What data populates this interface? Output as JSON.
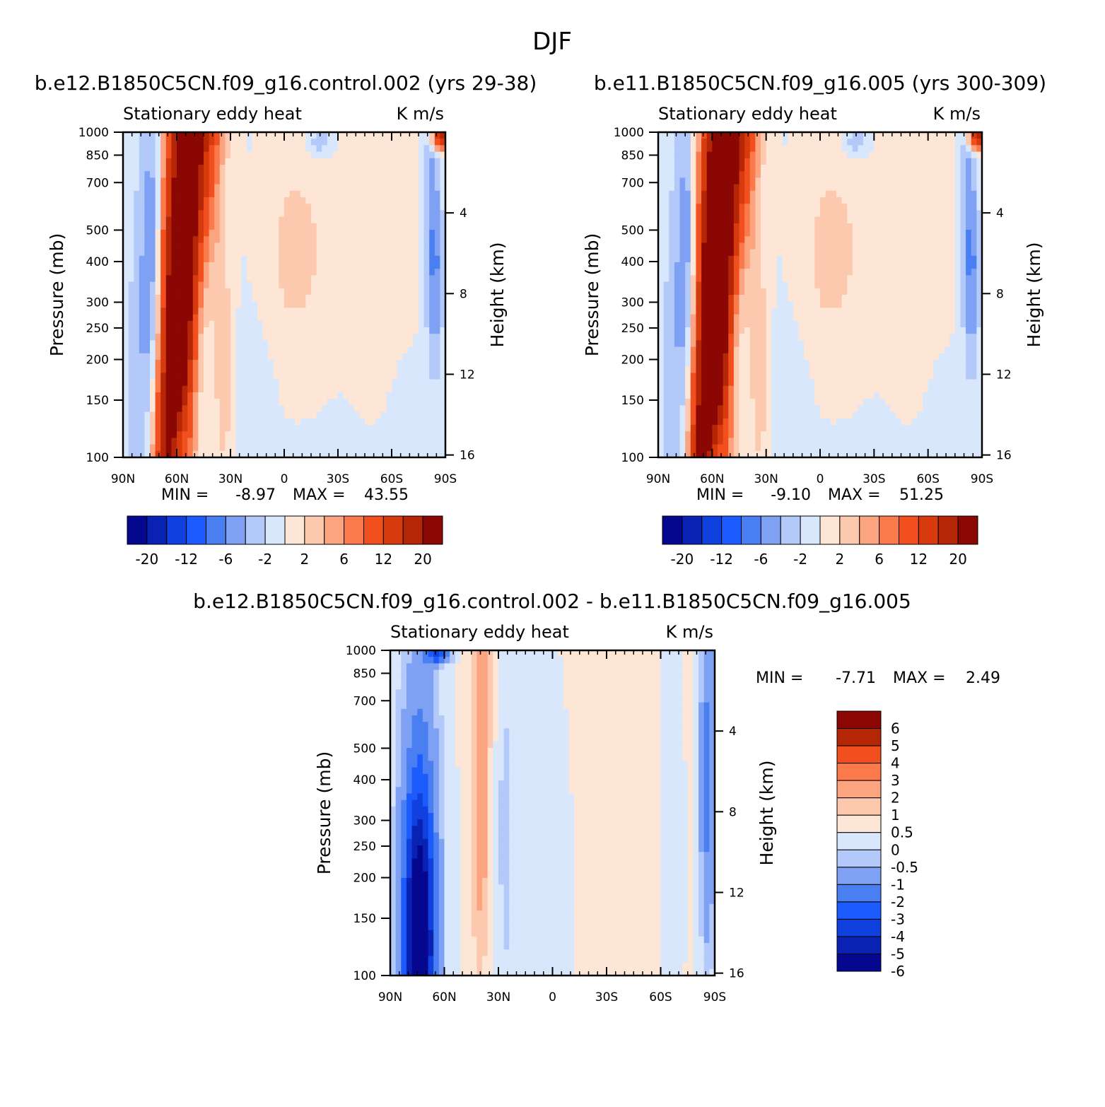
{
  "figure_title": "DJF",
  "colors": {
    "main_levels": [
      "#06078f",
      "#0a22b4",
      "#1040de",
      "#1c5cff",
      "#4a7ff2",
      "#7fa1f4",
      "#b2c9fa",
      "#d8e7fb",
      "#fde6d6",
      "#fcc8ae",
      "#fba47f",
      "#fa7a4b",
      "#f24f1f",
      "#d73a0c",
      "#b52607",
      "#8a0704"
    ],
    "diff_levels": [
      "#06078f",
      "#0a22b4",
      "#1040de",
      "#1c5cff",
      "#4a7ff2",
      "#7fa1f4",
      "#b2c9fa",
      "#d8e7fb",
      "#fde6d6",
      "#fcc8ae",
      "#fba47f",
      "#fa7a4b",
      "#f24f1f",
      "#b52607",
      "#8a0704"
    ]
  },
  "chart_data": [
    {
      "type": "heatmap",
      "title": "b.e12.B1850C5CN.f09_g16.control.002 (yrs 29-38)",
      "left_label": "Stationary eddy heat",
      "units": "K m/s",
      "ylabel": "Pressure (mb)",
      "ylabel_right": "Height (km)",
      "x_ticks": [
        "90N",
        "60N",
        "30N",
        "0",
        "30S",
        "60S",
        "90S"
      ],
      "y_ticks": [
        "100",
        "150",
        "200",
        "250",
        "300",
        "400",
        "500",
        "700",
        "850",
        "1000"
      ],
      "y_right_ticks": [
        "16",
        "12",
        "8",
        "4"
      ],
      "min_label": "MIN =",
      "min_value": "-8.97",
      "max_label": "MAX =",
      "max_value": "43.55",
      "colorbar_labels": [
        "-20",
        "-12",
        "-6",
        "-2",
        "2",
        "6",
        "12",
        "20"
      ],
      "xlim": [
        90,
        -90
      ],
      "ylim": [
        1000,
        100
      ],
      "features": [
        {
          "lat": 53,
          "p": 450,
          "value": 28
        },
        {
          "lat": 45,
          "p": 500,
          "value": 20
        },
        {
          "lat": 72,
          "p": 400,
          "value": -5
        },
        {
          "lat": 0,
          "p": 400,
          "value": 0.6
        },
        {
          "lat": -20,
          "p": 950,
          "value": -3
        },
        {
          "lat": -83,
          "p": 400,
          "value": -7
        },
        {
          "lat": -85,
          "p": 960,
          "value": 12
        }
      ]
    },
    {
      "type": "heatmap",
      "title": "b.e11.B1850C5CN.f09_g16.005 (yrs 300-309)",
      "left_label": "Stationary eddy heat",
      "units": "K m/s",
      "ylabel": "Pressure (mb)",
      "ylabel_right": "Height (km)",
      "x_ticks": [
        "90N",
        "60N",
        "30N",
        "0",
        "30S",
        "60S",
        "90S"
      ],
      "y_ticks": [
        "100",
        "150",
        "200",
        "250",
        "300",
        "400",
        "500",
        "700",
        "850",
        "1000"
      ],
      "y_right_ticks": [
        "16",
        "12",
        "8",
        "4"
      ],
      "min_label": "MIN =",
      "min_value": "-9.10",
      "max_label": "MAX =",
      "max_value": "51.25",
      "colorbar_labels": [
        "-20",
        "-12",
        "-6",
        "-2",
        "2",
        "6",
        "12",
        "20"
      ],
      "xlim": [
        90,
        -90
      ],
      "ylim": [
        1000,
        100
      ],
      "features": [
        {
          "lat": 53,
          "p": 450,
          "value": 30
        },
        {
          "lat": 58,
          "p": 120,
          "value": 15
        },
        {
          "lat": 72,
          "p": 400,
          "value": -5
        },
        {
          "lat": 0,
          "p": 400,
          "value": 0.6
        },
        {
          "lat": -20,
          "p": 950,
          "value": -3
        },
        {
          "lat": -83,
          "p": 400,
          "value": -6
        },
        {
          "lat": -85,
          "p": 960,
          "value": 12
        }
      ]
    },
    {
      "type": "heatmap",
      "title": "b.e12.B1850C5CN.f09_g16.control.002 - b.e11.B1850C5CN.f09_g16.005",
      "left_label": "Stationary eddy heat",
      "units": "K m/s",
      "ylabel": "Pressure (mb)",
      "ylabel_right": "Height (km)",
      "x_ticks": [
        "90N",
        "60N",
        "30N",
        "0",
        "30S",
        "60S",
        "90S"
      ],
      "y_ticks": [
        "100",
        "150",
        "200",
        "250",
        "300",
        "400",
        "500",
        "700",
        "850",
        "1000"
      ],
      "y_right_ticks": [
        "16",
        "12",
        "8",
        "4"
      ],
      "min_label": "MIN =",
      "min_value": "-7.71",
      "max_label": "MAX =",
      "max_value": "2.49",
      "colorbar_labels": [
        "6",
        "5",
        "4",
        "3",
        "2",
        "1",
        "0.5",
        "0",
        "-0.5",
        "-1",
        "-2",
        "-3",
        "-4",
        "-5",
        "-6"
      ],
      "xlim": [
        90,
        -90
      ],
      "ylim": [
        1000,
        100
      ],
      "features": [
        {
          "lat": 74,
          "p": 130,
          "value": -6
        },
        {
          "lat": 74,
          "p": 250,
          "value": -3
        },
        {
          "lat": 40,
          "p": 300,
          "value": 1.2
        },
        {
          "lat": 10,
          "p": 300,
          "value": 0.3
        },
        {
          "lat": -85,
          "p": 700,
          "value": -2
        },
        {
          "lat": 62,
          "p": 990,
          "value": -4
        }
      ]
    }
  ]
}
